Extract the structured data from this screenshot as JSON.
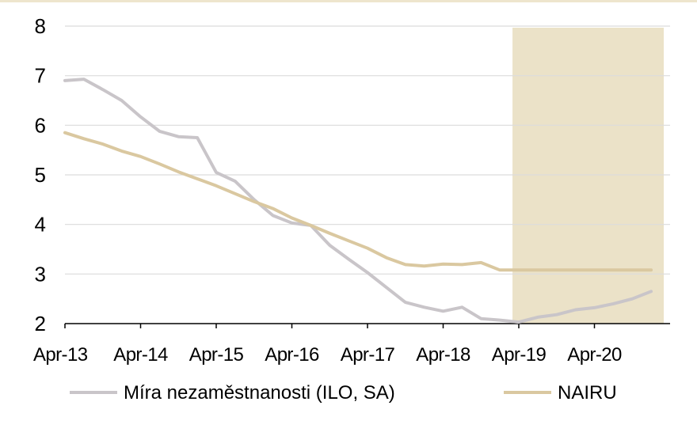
{
  "chart_data": {
    "type": "line",
    "y_ticks": [
      "2",
      "3",
      "4",
      "5",
      "6",
      "7",
      "8"
    ],
    "ylim": [
      2,
      8
    ],
    "x_tick_labels": [
      "Apr-13",
      "Apr-14",
      "Apr-15",
      "Apr-16",
      "Apr-17",
      "Apr-18",
      "Apr-19",
      "Apr-20"
    ],
    "x_tick_dates": [
      "2013-04",
      "2014-04",
      "2015-04",
      "2016-04",
      "2017-04",
      "2018-04",
      "2019-04",
      "2020-04"
    ],
    "grid": true,
    "legend_position": "bottom",
    "forecast_region": {
      "from": "2019-03",
      "to": "2021-03",
      "color": "#ebe2c8"
    },
    "series": [
      {
        "name": "Míra nezaměstnanosti (ILO, SA)",
        "color": "#c9c5c9",
        "points": [
          [
            "2013-04",
            6.9
          ],
          [
            "2013-07",
            6.93
          ],
          [
            "2013-10",
            6.72
          ],
          [
            "2014-01",
            6.5
          ],
          [
            "2014-04",
            6.17
          ],
          [
            "2014-07",
            5.88
          ],
          [
            "2014-10",
            5.77
          ],
          [
            "2015-01",
            5.75
          ],
          [
            "2015-04",
            5.05
          ],
          [
            "2015-07",
            4.87
          ],
          [
            "2015-10",
            4.5
          ],
          [
            "2016-01",
            4.18
          ],
          [
            "2016-04",
            4.03
          ],
          [
            "2016-07",
            3.98
          ],
          [
            "2016-10",
            3.58
          ],
          [
            "2017-01",
            3.3
          ],
          [
            "2017-04",
            3.03
          ],
          [
            "2017-07",
            2.73
          ],
          [
            "2017-10",
            2.43
          ],
          [
            "2018-01",
            2.33
          ],
          [
            "2018-04",
            2.25
          ],
          [
            "2018-07",
            2.33
          ],
          [
            "2018-10",
            2.1
          ],
          [
            "2019-01",
            2.07
          ],
          [
            "2019-04",
            2.03
          ],
          [
            "2019-07",
            2.13
          ],
          [
            "2019-10",
            2.18
          ],
          [
            "2020-01",
            2.28
          ],
          [
            "2020-04",
            2.32
          ],
          [
            "2020-07",
            2.4
          ],
          [
            "2020-10",
            2.5
          ],
          [
            "2021-01",
            2.65
          ]
        ]
      },
      {
        "name": "NAIRU",
        "color": "#dac8a0",
        "points": [
          [
            "2013-04",
            5.85
          ],
          [
            "2013-07",
            5.73
          ],
          [
            "2013-10",
            5.62
          ],
          [
            "2014-01",
            5.48
          ],
          [
            "2014-04",
            5.37
          ],
          [
            "2014-07",
            5.22
          ],
          [
            "2014-10",
            5.06
          ],
          [
            "2015-01",
            4.92
          ],
          [
            "2015-04",
            4.78
          ],
          [
            "2015-07",
            4.62
          ],
          [
            "2015-10",
            4.46
          ],
          [
            "2016-01",
            4.32
          ],
          [
            "2016-04",
            4.13
          ],
          [
            "2016-07",
            3.98
          ],
          [
            "2016-10",
            3.82
          ],
          [
            "2017-01",
            3.67
          ],
          [
            "2017-04",
            3.52
          ],
          [
            "2017-07",
            3.33
          ],
          [
            "2017-10",
            3.19
          ],
          [
            "2018-01",
            3.16
          ],
          [
            "2018-04",
            3.2
          ],
          [
            "2018-07",
            3.19
          ],
          [
            "2018-10",
            3.23
          ],
          [
            "2019-01",
            3.08
          ],
          [
            "2019-04",
            3.08
          ],
          [
            "2019-07",
            3.08
          ],
          [
            "2019-10",
            3.08
          ],
          [
            "2020-01",
            3.08
          ],
          [
            "2020-04",
            3.08
          ],
          [
            "2020-07",
            3.08
          ],
          [
            "2020-10",
            3.08
          ],
          [
            "2021-01",
            3.08
          ]
        ]
      }
    ]
  }
}
